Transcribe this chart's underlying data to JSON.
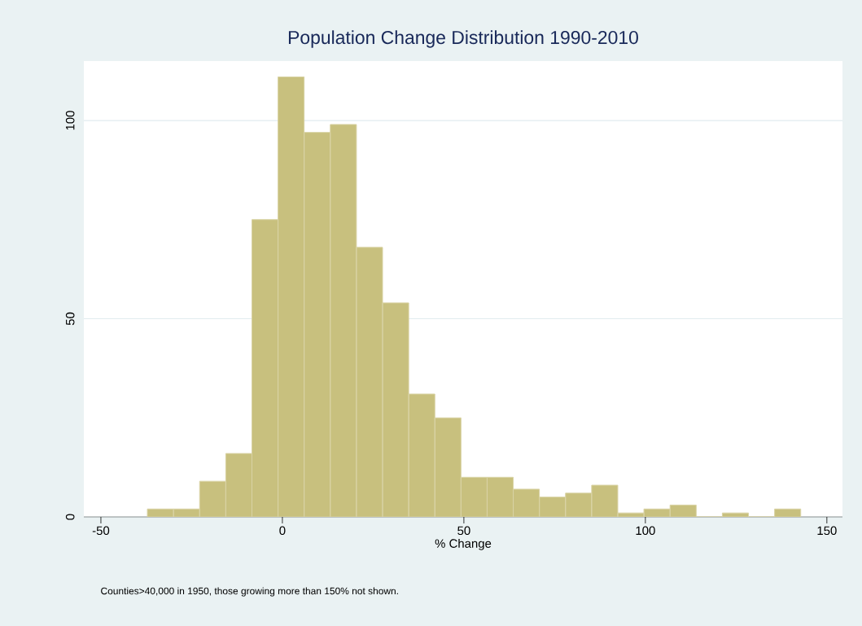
{
  "chart_data": {
    "type": "histogram",
    "title": "Population Change Distribution 1990-2010",
    "xlabel": "% Change",
    "annotations": [
      "Counties>40,000 in 1950, those growing more than 150% not shown."
    ],
    "bins": [
      -37.2,
      -30,
      -22.8,
      -15.6,
      -8.4,
      -1.2,
      6,
      13.2,
      20.4,
      27.6,
      34.8,
      42,
      49.2,
      56.4,
      63.6,
      70.8,
      78,
      85.2,
      92.4,
      99.6,
      106.8,
      114,
      121.2,
      128.4,
      135.6,
      142.8
    ],
    "values": [
      2,
      2,
      9,
      16,
      75,
      111,
      97,
      99,
      68,
      54,
      31,
      25,
      10,
      10,
      7,
      5,
      6,
      8,
      1,
      2,
      3,
      0,
      1,
      0,
      2
    ],
    "color": "#c8c07e",
    "xlim": [
      -54.7,
      154.3
    ],
    "ylim": [
      0,
      115
    ],
    "xticks": [
      -50,
      0,
      50,
      100,
      150
    ],
    "yticks": [
      0,
      50,
      100
    ],
    "grid": "y"
  }
}
